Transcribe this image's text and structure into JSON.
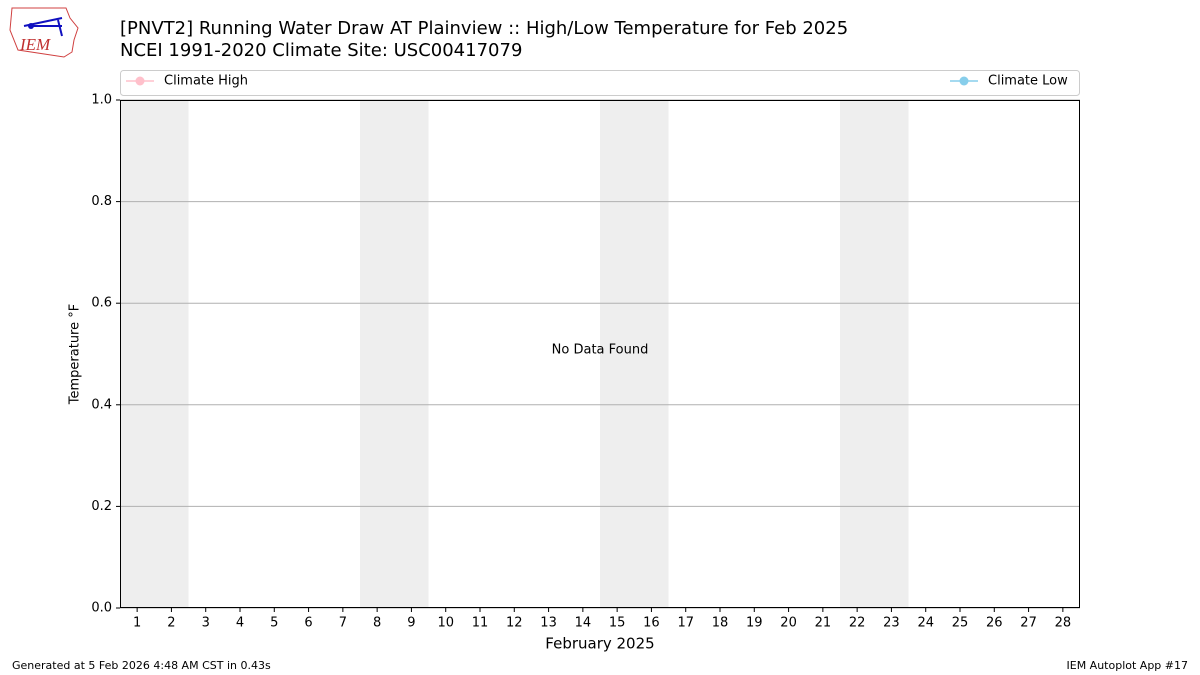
{
  "logo": {
    "text": "IEM"
  },
  "chart_data": {
    "type": "line",
    "title": "[PNVT2] Running Water Draw  AT Plainview :: High/Low Temperature for Feb 2025",
    "subtitle": "NCEI 1991-2020 Climate Site: USC00417079",
    "x_label": "February 2025",
    "y_label": "Temperature °F",
    "annotation": "No Data Found",
    "x": [],
    "series": [
      {
        "name": "Climate High",
        "color": "#ffc0cb",
        "values": []
      },
      {
        "name": "Climate Low",
        "color": "#87ceeb",
        "values": []
      }
    ],
    "xlim": [
      0.5,
      28.5
    ],
    "xticks": [
      1,
      2,
      3,
      4,
      5,
      6,
      7,
      8,
      9,
      10,
      11,
      12,
      13,
      14,
      15,
      16,
      17,
      18,
      19,
      20,
      21,
      22,
      23,
      24,
      25,
      26,
      27,
      28
    ],
    "ylim": [
      0,
      1
    ],
    "yticks": [
      {
        "value": 0,
        "label": "0.0"
      },
      0.2,
      0.4,
      0.6,
      0.8,
      {
        "value": 1,
        "label": "1.0"
      }
    ],
    "grid": true,
    "shaded_bands": [
      [
        0.5,
        2.5
      ],
      [
        7.5,
        9.5
      ],
      [
        14.5,
        16.5
      ],
      [
        21.5,
        23.5
      ]
    ],
    "shade_color": "#eeeeee"
  },
  "footer": {
    "left": "Generated at 5 Feb 2026 4:48 AM CST in 0.43s",
    "right": "IEM Autoplot App #17"
  }
}
